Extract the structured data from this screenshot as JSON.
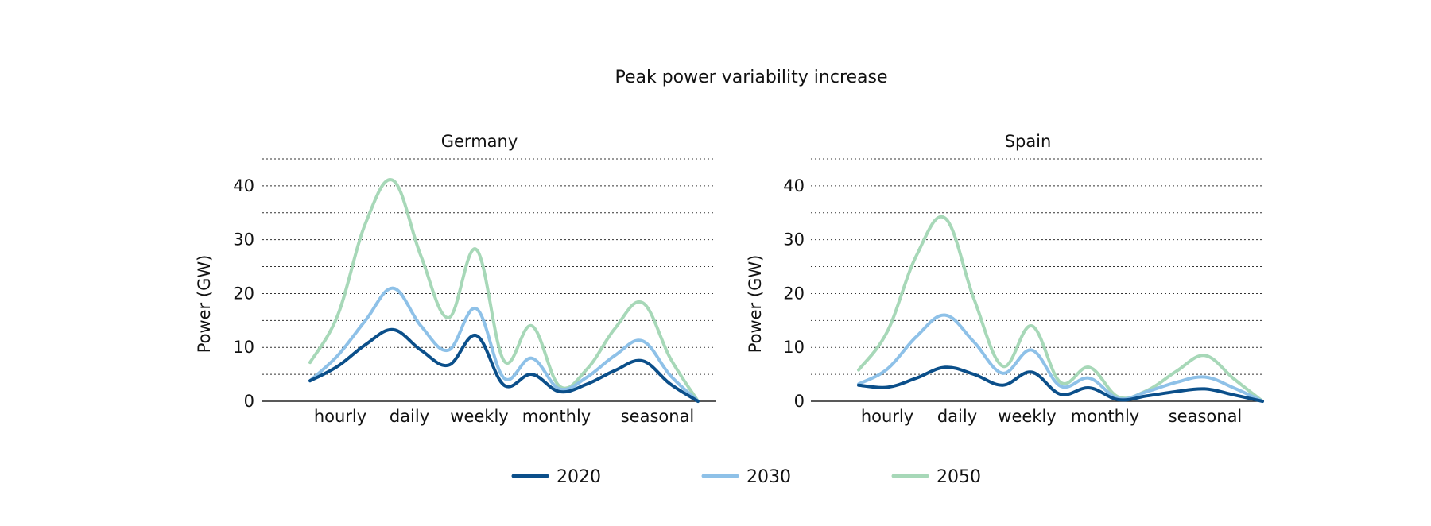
{
  "chart_data": {
    "type": "line",
    "title": "Peak power variability increase",
    "legend_position": "bottom",
    "grid": true,
    "colors": {
      "2020": "#0b4f8a",
      "2030": "#8ec1e8",
      "2050": "#a7d8b8"
    },
    "panels": [
      {
        "title": "Germany",
        "ylabel": "Power (GW)",
        "ylim": [
          0,
          45
        ],
        "yticks": [
          0,
          10,
          20,
          30,
          40
        ],
        "x_categories": [
          "hourly",
          "daily",
          "weekly",
          "monthly",
          "seasonal"
        ],
        "x": [
          0,
          0.5,
          1,
          1.5,
          2,
          2.5,
          3,
          3.5,
          4,
          4.5,
          5,
          5.5,
          6,
          6.5,
          7
        ],
        "series": [
          {
            "name": "2020",
            "values": [
              3.8,
              6.5,
              10.5,
              13.3,
              9.5,
              6.7,
              12.2,
              3,
              5,
              1.8,
              3.2,
              5.7,
              7.5,
              3.2,
              0
            ]
          },
          {
            "name": "2030",
            "values": [
              3.8,
              8.5,
              15,
              21,
              14,
              9.5,
              17.2,
              4.3,
              8,
              2.3,
              4.5,
              8.5,
              11.2,
              4.8,
              0
            ]
          },
          {
            "name": "2050",
            "values": [
              7.2,
              16,
              33,
              41,
              27,
              15.5,
              28.2,
              7.5,
              14,
              2.8,
              6,
              13.5,
              18.3,
              8,
              0
            ]
          }
        ]
      },
      {
        "title": "Spain",
        "ylabel": "Power (GW)",
        "ylim": [
          0,
          45
        ],
        "yticks": [
          0,
          10,
          20,
          30,
          40
        ],
        "x_categories": [
          "hourly",
          "daily",
          "weekly",
          "monthly",
          "seasonal"
        ],
        "x": [
          0,
          0.5,
          1,
          1.5,
          2,
          2.5,
          3,
          3.5,
          4,
          4.5,
          5,
          5.5,
          6,
          6.5,
          7
        ],
        "series": [
          {
            "name": "2020",
            "values": [
              3,
              2.6,
              4.3,
              6.3,
              5,
              3,
              5.4,
              1.3,
              2.5,
              0.3,
              1,
              1.8,
              2.3,
              1.2,
              0
            ]
          },
          {
            "name": "2030",
            "values": [
              3.2,
              6,
              12,
              16,
              11,
              5.2,
              9.5,
              2.8,
              4.3,
              0.5,
              1.8,
              3.5,
              4.5,
              2.5,
              0
            ]
          },
          {
            "name": "2050",
            "values": [
              5.8,
              13,
              27,
              34,
              19,
              6.5,
              14,
              3.5,
              6.3,
              0.8,
              2,
              5.5,
              8.5,
              4.2,
              0
            ]
          }
        ]
      }
    ],
    "legend": [
      "2020",
      "2030",
      "2050"
    ]
  }
}
